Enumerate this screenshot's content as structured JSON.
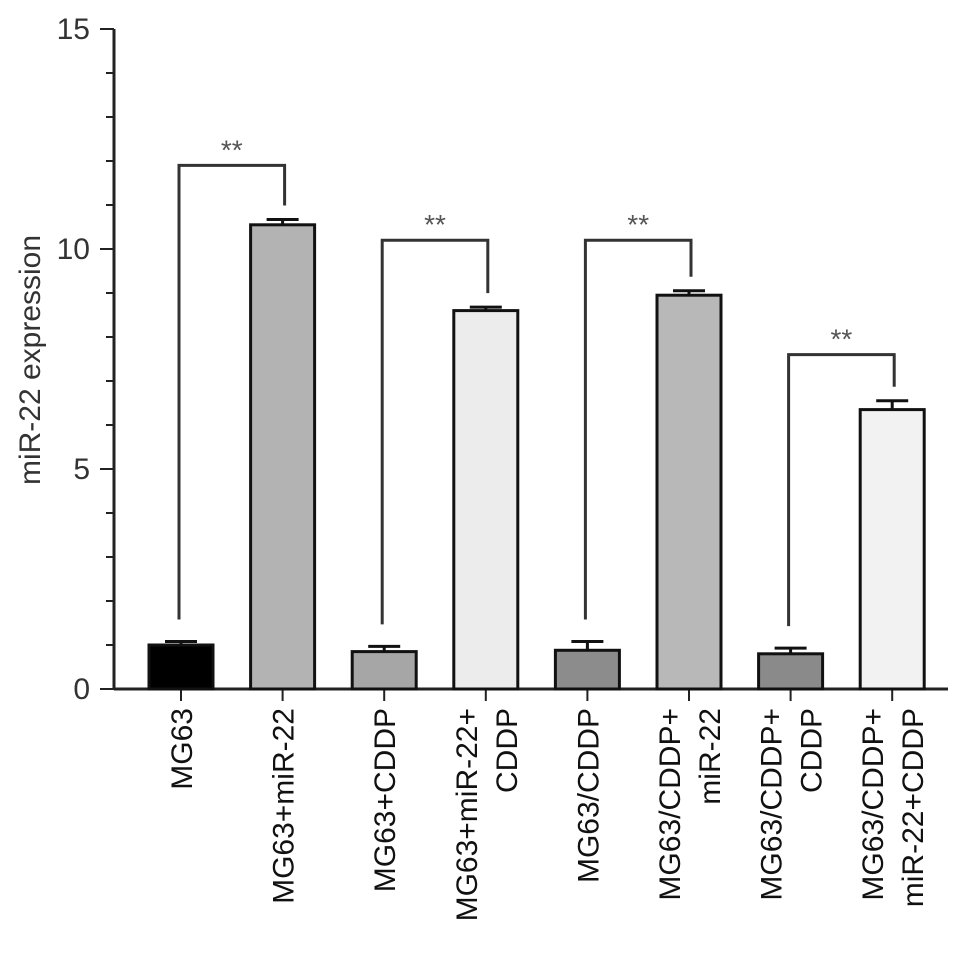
{
  "chart_data": {
    "type": "bar",
    "title": "",
    "xlabel": "",
    "ylabel": "miR-22 expression",
    "ylim": [
      0,
      15
    ],
    "yticks": [
      0,
      5,
      10,
      15
    ],
    "grid": false,
    "categories": [
      [
        "MG63"
      ],
      [
        "MG63+miR-22"
      ],
      [
        "MG63+CDDP"
      ],
      [
        "MG63+miR-22+",
        "CDDP"
      ],
      [
        "MG63/CDDP"
      ],
      [
        "MG63/CDDP+",
        "miR-22"
      ],
      [
        "MG63/CDDP+",
        "CDDP"
      ],
      [
        "MG63/CDDP+",
        "miR-22+CDDP"
      ]
    ],
    "values": [
      1.0,
      10.55,
      0.85,
      8.6,
      0.88,
      8.95,
      0.8,
      6.35
    ],
    "errors": [
      0.08,
      0.12,
      0.12,
      0.08,
      0.2,
      0.1,
      0.13,
      0.2
    ],
    "colors": [
      "#000000",
      "#b3b3b3",
      "#a6a6a6",
      "#ececec",
      "#8c8c8c",
      "#b8b8b8",
      "#8a8a8a",
      "#f2f2f2"
    ],
    "significance": [
      {
        "from": 0,
        "to": 1,
        "label": "**",
        "bracket_y": 11.9
      },
      {
        "from": 2,
        "to": 3,
        "label": "**",
        "bracket_y": 10.2
      },
      {
        "from": 4,
        "to": 5,
        "label": "**",
        "bracket_y": 10.2
      },
      {
        "from": 6,
        "to": 7,
        "label": "**",
        "bracket_y": 7.6
      }
    ]
  }
}
